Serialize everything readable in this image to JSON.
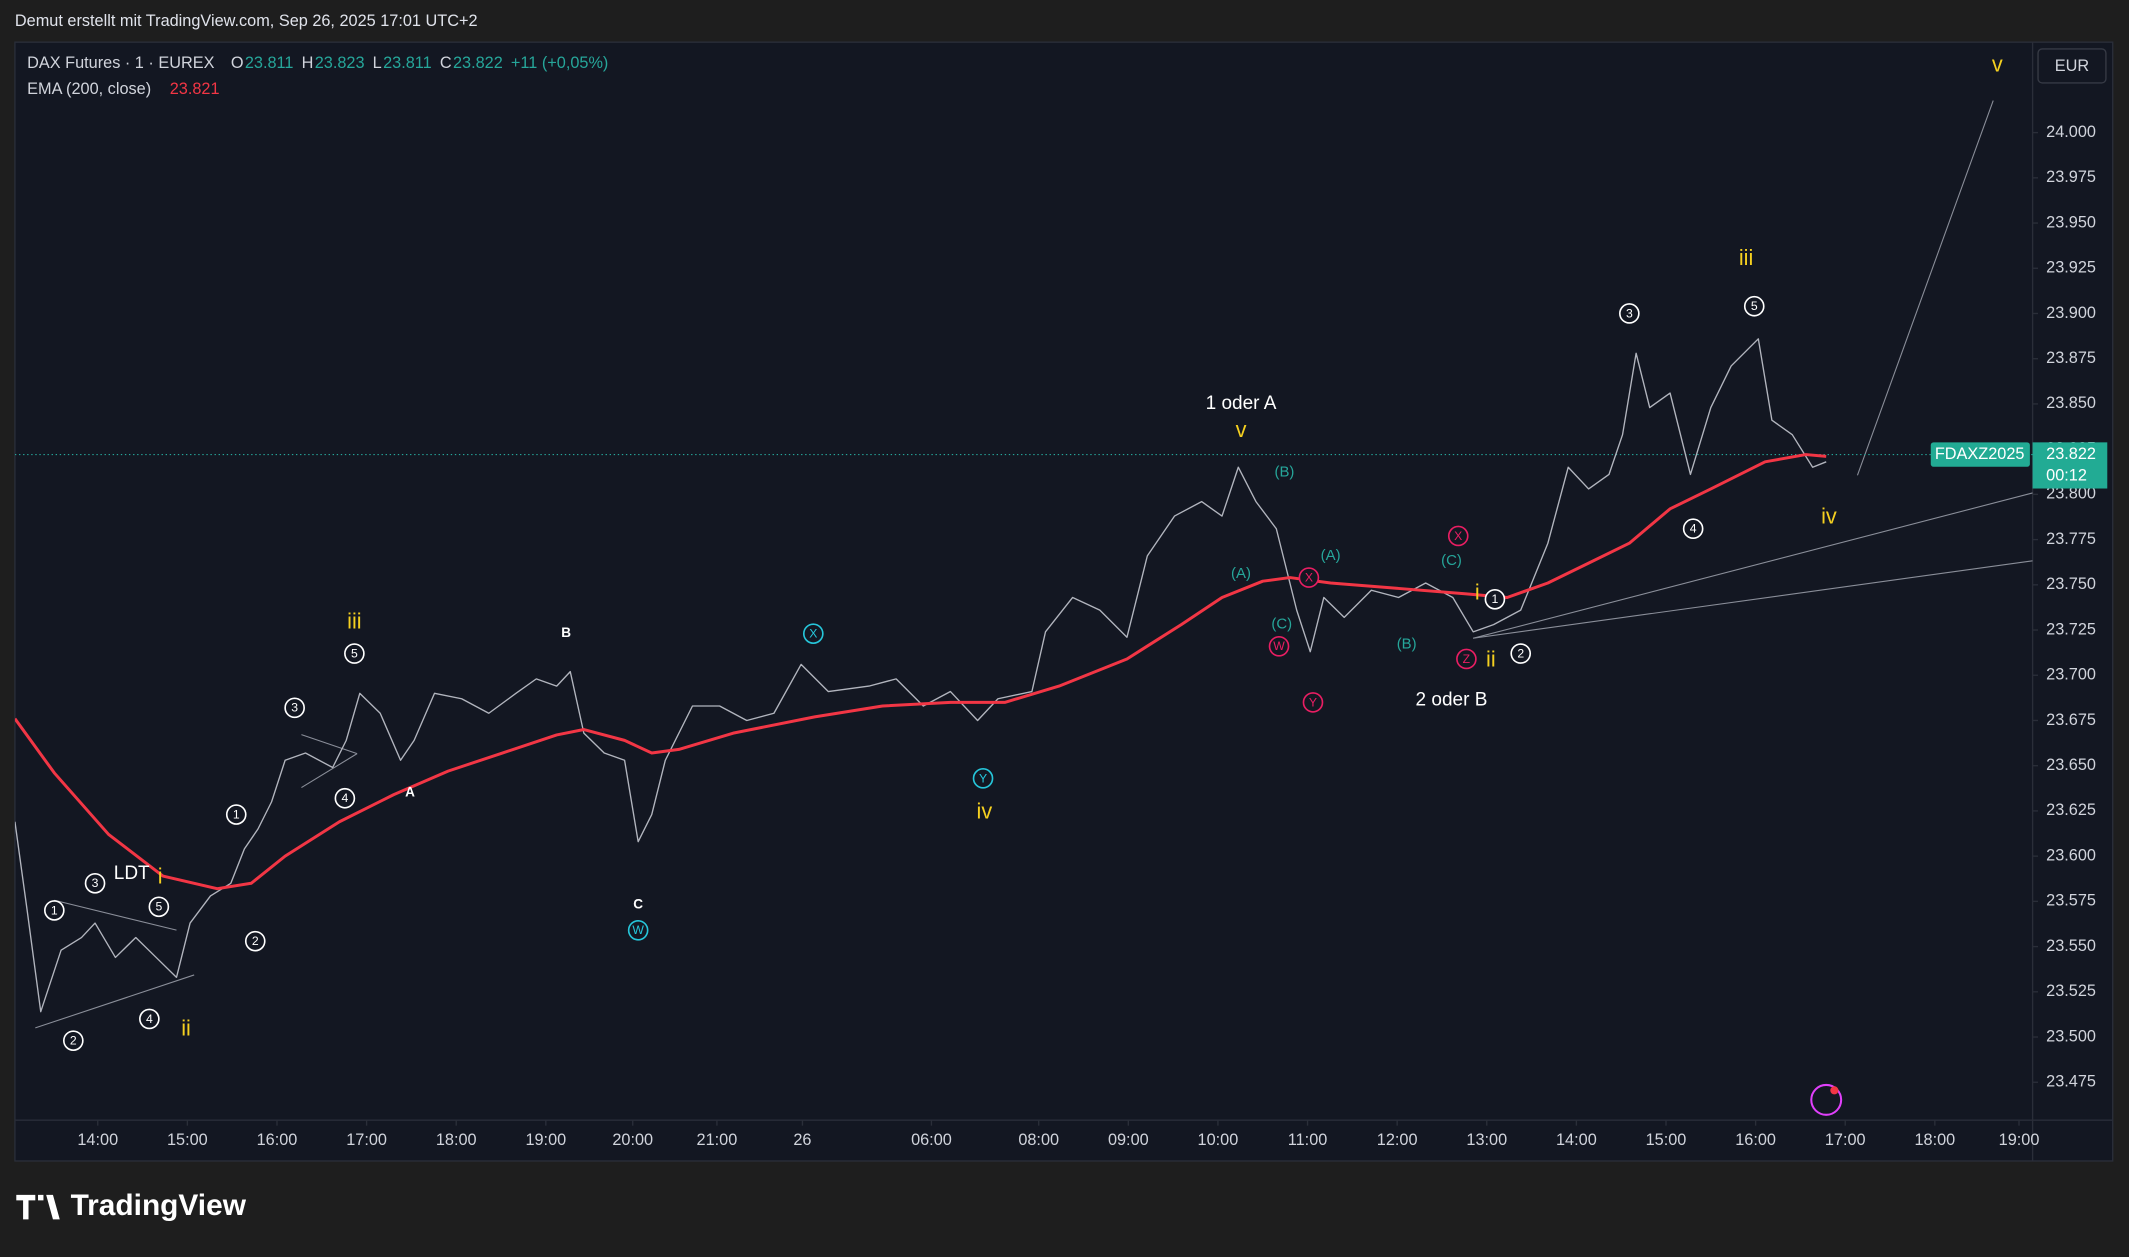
{
  "header": {
    "text": "Demut erstellt mit TradingView.com, Sep 26, 2025 17:01 UTC+2"
  },
  "footer": {
    "logo": "TradingView"
  },
  "chart_data": {
    "type": "line",
    "currency": "EUR",
    "ohlc": [
      {
        "key": "O",
        "label": "23.811"
      },
      {
        "key": "H",
        "label": "23.823"
      },
      {
        "key": "L",
        "label": "23.811"
      },
      {
        "key": "C",
        "label": "23.822"
      }
    ],
    "change": "+11 (+0,05%)",
    "series": [
      {
        "name": "DAX Futures · 1 · EUREX",
        "color": "#b2b5be",
        "x": [
          0,
          9,
          19,
          34,
          49,
          59,
          74,
          89,
          104,
          119,
          129,
          144,
          159,
          169,
          179,
          189,
          199,
          214,
          234,
          244,
          254,
          269,
          284,
          294,
          309,
          329,
          349,
          369,
          384,
          399,
          409,
          419,
          434,
          449,
          459,
          469,
          479,
          499,
          519,
          539,
          559,
          579,
          599,
          629,
          649,
          669,
          689,
          709,
          724,
          749,
          759,
          779,
          799,
          819,
          834,
          854,
          874,
          889,
          901,
          914,
          929,
          944,
          954,
          964,
          979,
          999,
          1019,
          1039,
          1059,
          1074,
          1089,
          1109,
          1129,
          1144,
          1159,
          1174,
          1184,
          1194,
          1204,
          1219,
          1234,
          1249,
          1264,
          1284,
          1294,
          1309,
          1324,
          1334
        ],
        "values": [
          23619,
          23570,
          23514,
          23548,
          23555,
          23563,
          23544,
          23555,
          23544,
          23533,
          23563,
          23578,
          23585,
          23604,
          23615,
          23630,
          23653,
          23657,
          23649,
          23664,
          23690,
          23679,
          23653,
          23664,
          23690,
          23687,
          23679,
          23690,
          23698,
          23694,
          23702,
          23668,
          23657,
          23653,
          23608,
          23623,
          23653,
          23683,
          23683,
          23675,
          23679,
          23706,
          23691,
          23694,
          23698,
          23683,
          23691,
          23675,
          23687,
          23691,
          23724,
          23743,
          23736,
          23721,
          23766,
          23788,
          23796,
          23788,
          23815,
          23796,
          23781,
          23736,
          23713,
          23743,
          23732,
          23747,
          23743,
          23751,
          23743,
          23724,
          23728,
          23736,
          23773,
          23815,
          23803,
          23811,
          23833,
          23878,
          23848,
          23856,
          23811,
          23848,
          23871,
          23886,
          23841,
          23833,
          23815,
          23818
        ]
      },
      {
        "name": "EMA (200, close)",
        "color": "#f23645",
        "legend_value": {
          "value": 23821,
          "label": "23.821"
        },
        "x": [
          0,
          29,
          69,
          109,
          149,
          174,
          199,
          239,
          279,
          319,
          359,
          399,
          419,
          449,
          469,
          489,
          529,
          589,
          639,
          689,
          729,
          769,
          819,
          859,
          889,
          919,
          939,
          969,
          1019,
          1069,
          1099,
          1129,
          1159,
          1189,
          1219,
          1249,
          1289,
          1319,
          1334
        ],
        "values": [
          23676,
          23646,
          23612,
          23589,
          23582,
          23585,
          23600,
          23619,
          23634,
          23647,
          23657,
          23667,
          23670,
          23664,
          23657,
          23659,
          23668,
          23677,
          23683,
          23685,
          23685,
          23694,
          23709,
          23728,
          23743,
          23752,
          23754,
          23751,
          23748,
          23745,
          23743,
          23751,
          23762,
          23773,
          23792,
          23803,
          23818,
          23822,
          23821
        ]
      }
    ],
    "last_price": {
      "value": 23822,
      "label": "23.822",
      "symbol": "FDAXZ2025",
      "countdown": "00:12"
    },
    "xlim": [
      0,
      1486
    ],
    "xticks": [
      {
        "value": 61,
        "label": "14:00"
      },
      {
        "value": 127,
        "label": "15:00"
      },
      {
        "value": 193,
        "label": "16:00"
      },
      {
        "value": 259,
        "label": "17:00"
      },
      {
        "value": 325,
        "label": "18:00"
      },
      {
        "value": 391,
        "label": "19:00"
      },
      {
        "value": 455,
        "label": "20:00"
      },
      {
        "value": 517,
        "label": "21:00"
      },
      {
        "value": 580,
        "label": "26"
      },
      {
        "value": 675,
        "label": "06:00"
      },
      {
        "value": 754,
        "label": "08:00"
      },
      {
        "value": 820,
        "label": "09:00"
      },
      {
        "value": 886,
        "label": "10:00"
      },
      {
        "value": 952,
        "label": "11:00"
      },
      {
        "value": 1018,
        "label": "12:00"
      },
      {
        "value": 1084,
        "label": "13:00"
      },
      {
        "value": 1150,
        "label": "14:00"
      },
      {
        "value": 1216,
        "label": "15:00"
      },
      {
        "value": 1282,
        "label": "16:00"
      },
      {
        "value": 1348,
        "label": "17:00"
      },
      {
        "value": 1414,
        "label": "18:00"
      },
      {
        "value": 1476,
        "label": "19:00"
      }
    ],
    "ylim": [
      23454,
      24050
    ],
    "yticks": [
      {
        "value": 23475,
        "label": "23.475"
      },
      {
        "value": 23500,
        "label": "23.500"
      },
      {
        "value": 23525,
        "label": "23.525"
      },
      {
        "value": 23550,
        "label": "23.550"
      },
      {
        "value": 23575,
        "label": "23.575"
      },
      {
        "value": 23600,
        "label": "23.600"
      },
      {
        "value": 23625,
        "label": "23.625"
      },
      {
        "value": 23650,
        "label": "23.650"
      },
      {
        "value": 23675,
        "label": "23.675"
      },
      {
        "value": 23700,
        "label": "23.700"
      },
      {
        "value": 23725,
        "label": "23.725"
      },
      {
        "value": 23750,
        "label": "23.750"
      },
      {
        "value": 23775,
        "label": "23.775"
      },
      {
        "value": 23800,
        "label": "23.800"
      },
      {
        "value": 23825,
        "label": "23.825"
      },
      {
        "value": 23850,
        "label": "23.850"
      },
      {
        "value": 23875,
        "label": "23.875"
      },
      {
        "value": 23900,
        "label": "23.900"
      },
      {
        "value": 23925,
        "label": "23.925"
      },
      {
        "value": 23950,
        "label": "23.950"
      },
      {
        "value": 23975,
        "label": "23.975"
      },
      {
        "value": 24000,
        "label": "24.000"
      }
    ],
    "annotations": [
      {
        "text": "LDT",
        "x": 86,
        "y": 23590,
        "color": "#ffffff",
        "circled": false
      },
      {
        "text": "1 oder A",
        "x": 903,
        "y": 23850,
        "color": "#ffffff",
        "circled": false
      },
      {
        "text": "2 oder B",
        "x": 1058,
        "y": 23686,
        "color": "#ffffff",
        "circled": false
      },
      {
        "text": "A",
        "x": 291,
        "y": 23635,
        "color": "#ffffff",
        "circled": false
      },
      {
        "text": "B",
        "x": 406,
        "y": 23723,
        "color": "#ffffff",
        "circled": false
      },
      {
        "text": "C",
        "x": 459,
        "y": 23573,
        "color": "#ffffff",
        "circled": false
      },
      {
        "text": "1",
        "x": 29,
        "y": 23570,
        "color": "#ffffff",
        "circled": true
      },
      {
        "text": "2",
        "x": 43,
        "y": 23498,
        "color": "#ffffff",
        "circled": true
      },
      {
        "text": "3",
        "x": 59,
        "y": 23585,
        "color": "#ffffff",
        "circled": true
      },
      {
        "text": "4",
        "x": 99,
        "y": 23510,
        "color": "#ffffff",
        "circled": true
      },
      {
        "text": "5",
        "x": 106,
        "y": 23572,
        "color": "#ffffff",
        "circled": true
      },
      {
        "text": "1",
        "x": 163,
        "y": 23623,
        "color": "#ffffff",
        "circled": true
      },
      {
        "text": "2",
        "x": 177,
        "y": 23553,
        "color": "#ffffff",
        "circled": true
      },
      {
        "text": "3",
        "x": 206,
        "y": 23682,
        "color": "#ffffff",
        "circled": true
      },
      {
        "text": "4",
        "x": 243,
        "y": 23632,
        "color": "#ffffff",
        "circled": true
      },
      {
        "text": "5",
        "x": 250,
        "y": 23712,
        "color": "#ffffff",
        "circled": true
      },
      {
        "text": "3",
        "x": 1189,
        "y": 23900,
        "color": "#ffffff",
        "circled": true
      },
      {
        "text": "4",
        "x": 1236,
        "y": 23781,
        "color": "#ffffff",
        "circled": true
      },
      {
        "text": "5",
        "x": 1281,
        "y": 23904,
        "color": "#ffffff",
        "circled": true
      },
      {
        "text": "1",
        "x": 1090,
        "y": 23742,
        "color": "#ffffff",
        "circled": true
      },
      {
        "text": "2",
        "x": 1109,
        "y": 23712,
        "color": "#ffffff",
        "circled": true
      },
      {
        "text": "i",
        "x": 107,
        "y": 23588,
        "color": "#f5d020",
        "circled": false
      },
      {
        "text": "ii",
        "x": 126,
        "y": 23504,
        "color": "#f5d020",
        "circled": false
      },
      {
        "text": "iii",
        "x": 250,
        "y": 23729,
        "color": "#f5d020",
        "circled": false
      },
      {
        "text": "iv",
        "x": 714,
        "y": 23624,
        "color": "#f5d020",
        "circled": false
      },
      {
        "text": "v",
        "x": 903,
        "y": 23835,
        "color": "#f5d020",
        "circled": false
      },
      {
        "text": "i",
        "x": 1077,
        "y": 23745,
        "color": "#f5d020",
        "circled": false
      },
      {
        "text": "ii",
        "x": 1087,
        "y": 23708,
        "color": "#f5d020",
        "circled": false
      },
      {
        "text": "iii",
        "x": 1275,
        "y": 23930,
        "color": "#f5d020",
        "circled": false
      },
      {
        "text": "iv",
        "x": 1336,
        "y": 23787,
        "color": "#f5d020",
        "circled": false
      },
      {
        "text": "v",
        "x": 1460,
        "y": 24037,
        "color": "#f5d020",
        "circled": false
      },
      {
        "text": "(B)",
        "x": 935,
        "y": 23812,
        "color": "#26a69a",
        "circled": false
      },
      {
        "text": "(A)",
        "x": 903,
        "y": 23756,
        "color": "#26a69a",
        "circled": false
      },
      {
        "text": "(C)",
        "x": 933,
        "y": 23728,
        "color": "#26a69a",
        "circled": false
      },
      {
        "text": "(A)",
        "x": 969,
        "y": 23766,
        "color": "#26a69a",
        "circled": false
      },
      {
        "text": "(C)",
        "x": 1058,
        "y": 23763,
        "color": "#26a69a",
        "circled": false
      },
      {
        "text": "(B)",
        "x": 1025,
        "y": 23717,
        "color": "#26a69a",
        "circled": false
      },
      {
        "text": "X",
        "x": 953,
        "y": 23754,
        "color": "#e91e63",
        "circled": true
      },
      {
        "text": "W",
        "x": 931,
        "y": 23716,
        "color": "#e91e63",
        "circled": true
      },
      {
        "text": "Y",
        "x": 956,
        "y": 23685,
        "color": "#e91e63",
        "circled": true
      },
      {
        "text": "X",
        "x": 1063,
        "y": 23777,
        "color": "#e91e63",
        "circled": true
      },
      {
        "text": "Z",
        "x": 1069,
        "y": 23709,
        "color": "#e91e63",
        "circled": true
      },
      {
        "text": "X",
        "x": 588,
        "y": 23723,
        "color": "#26c6da",
        "circled": true
      },
      {
        "text": "Y",
        "x": 713,
        "y": 23643,
        "color": "#26c6da",
        "circled": true
      },
      {
        "text": "W",
        "x": 459,
        "y": 23559,
        "color": "#26c6da",
        "circled": true
      }
    ]
  }
}
